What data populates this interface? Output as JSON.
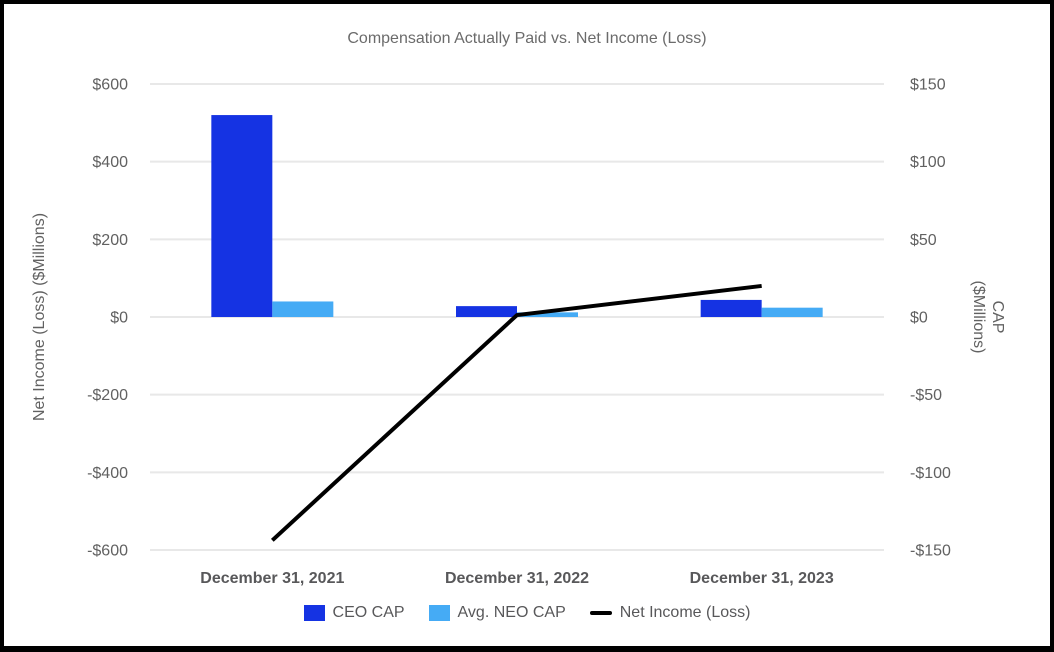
{
  "title": "Compensation Actually Paid vs. Net Income (Loss)",
  "chart_data": {
    "type": "bar",
    "subtype": "grouped-bars-with-line-overlay",
    "title": "Compensation Actually Paid vs. Net Income (Loss)",
    "categories": [
      "December 31, 2021",
      "December 31, 2022",
      "December 31, 2023"
    ],
    "series": [
      {
        "name": "CEO CAP",
        "type": "bar",
        "axis": "right",
        "color": "#1533E3",
        "values": [
          130,
          7,
          11
        ]
      },
      {
        "name": "Avg. NEO CAP",
        "type": "bar",
        "axis": "right",
        "color": "#45ABF5",
        "values": [
          10,
          3,
          6
        ]
      },
      {
        "name": "Net Income (Loss)",
        "type": "line",
        "axis": "left",
        "color": "#000000",
        "values": [
          -575,
          5,
          80
        ]
      }
    ],
    "left_axis": {
      "label": "Net Income (Loss) ($Millions)",
      "min": -600,
      "max": 600,
      "tick_values": [
        600,
        400,
        200,
        0,
        -200,
        -400,
        -600
      ],
      "tick_labels": [
        "$600",
        "$400",
        "$200",
        "$0",
        "-$200",
        "-$400",
        "-$600"
      ]
    },
    "right_axis": {
      "label_line1": "CAP",
      "label_line2": "($Millions)",
      "min": -150,
      "max": 150,
      "tick_values": [
        150,
        100,
        50,
        0,
        -50,
        -100,
        -150
      ],
      "tick_labels": [
        "$150",
        "$100",
        "$50",
        "$0",
        "-$50",
        "-$100",
        "-$150"
      ]
    },
    "legend": [
      {
        "label": "CEO CAP",
        "swatch": "square",
        "color": "#1533E3"
      },
      {
        "label": "Avg. NEO CAP",
        "swatch": "square",
        "color": "#45ABF5"
      },
      {
        "label": "Net Income (Loss)",
        "swatch": "line",
        "color": "#000000"
      }
    ],
    "grid": true,
    "legend_position": "bottom"
  },
  "colors": {
    "background": "#ffffff",
    "frame_border": "#000000",
    "grid_line": "#e8e8e8",
    "tick_text": "#616161",
    "title_text": "#6b6b6b",
    "category_text": "#58585a",
    "legend_text": "#58585a"
  }
}
